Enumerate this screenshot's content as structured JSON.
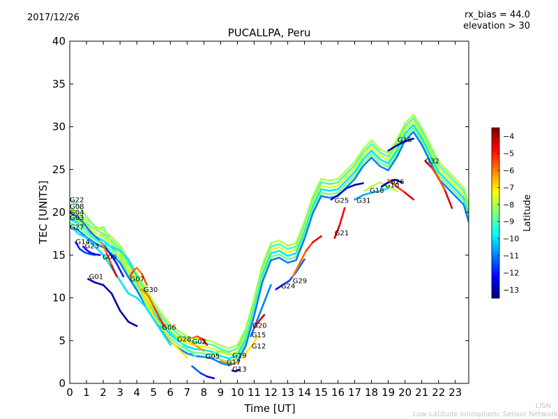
{
  "header": {
    "date": "2017/12/26",
    "info_line1": "rx_bias = 44.0",
    "info_line2": "elevation > 30"
  },
  "footer": {
    "brand": "LISN",
    "network": "Low-Latitude Ionospheric Sensor Network"
  },
  "colors": {
    "jet": [
      "#00007f",
      "#0000ff",
      "#007fff",
      "#00ffff",
      "#7fff7f",
      "#ffff00",
      "#ff7f00",
      "#ff0000",
      "#7f0000"
    ]
  },
  "chart_data": {
    "type": "line",
    "title": "PUCALLPA, Peru",
    "xlabel": "Time [UT]",
    "ylabel": "TEC [UNITS]",
    "xlim": [
      0,
      23.8
    ],
    "ylim": [
      0,
      40
    ],
    "xticks": [
      0,
      1,
      2,
      3,
      4,
      5,
      6,
      7,
      8,
      9,
      10,
      11,
      12,
      13,
      14,
      15,
      16,
      17,
      18,
      19,
      20,
      21,
      22,
      23
    ],
    "yticks": [
      0,
      5,
      10,
      15,
      20,
      25,
      30,
      35,
      40
    ],
    "colorbar": {
      "label": "Latitude",
      "range": [
        -13.5,
        -3.5
      ],
      "ticks": [
        -4,
        -5,
        -6,
        -7,
        -8,
        -9,
        -10,
        -11,
        -12,
        -13
      ]
    },
    "series": [
      {
        "name": "G22",
        "label_at": [
          0.0,
          21.2
        ],
        "x": [
          0,
          0.5,
          1,
          1.5,
          2,
          2.5,
          3,
          3.5,
          4,
          4.5,
          5
        ],
        "y": [
          21.5,
          20.8,
          19.5,
          18.3,
          17.2,
          16.3,
          14.8,
          13.2,
          11.5,
          9.5,
          7.5
        ],
        "lat": [
          -9,
          -9,
          -8.5,
          -8.5,
          -8,
          -8,
          -8,
          -8,
          -8,
          -8,
          -8
        ]
      },
      {
        "name": "G08",
        "label_at": [
          0.0,
          20.4
        ],
        "x": [
          0,
          0.5,
          1,
          1.5,
          2,
          2.5,
          3,
          3.5,
          4,
          4.5,
          5,
          5.5,
          6,
          6.5,
          7
        ],
        "y": [
          20.5,
          20,
          18.5,
          18,
          18.3,
          16.5,
          15.5,
          13.5,
          12.3,
          10,
          8,
          6.5,
          5,
          4,
          3
        ],
        "lat": [
          -8,
          -8,
          -8,
          -8,
          -8.5,
          -8,
          -8,
          -7.5,
          -7,
          -7,
          -7,
          -7,
          -7,
          -7,
          -7
        ]
      },
      {
        "name": "G04",
        "label_at": [
          0.0,
          19.7
        ],
        "x": [
          0,
          0.4,
          0.8,
          1.2,
          1.6,
          2,
          2.4,
          2.8,
          3.2
        ],
        "y": [
          20,
          19.5,
          18.8,
          17.8,
          17,
          16.2,
          15.2,
          14,
          12.5
        ],
        "lat": [
          -11,
          -11,
          -11,
          -11,
          -11.5,
          -11.5,
          -12,
          -12,
          -12
        ]
      },
      {
        "name": "G03",
        "label_at": [
          0.0,
          19.1
        ],
        "x": [
          0,
          0.4,
          0.8,
          1.2,
          1.6,
          2,
          2.5,
          3,
          3.5,
          4
        ],
        "y": [
          19.5,
          19,
          18.3,
          17.5,
          16.8,
          16.3,
          16,
          15.5,
          14.5,
          12.5
        ],
        "lat": [
          -9,
          -9,
          -9,
          -9,
          -9.5,
          -9.5,
          -10,
          -10,
          -10,
          -10
        ]
      },
      {
        "name": "G27",
        "label_at": [
          0.0,
          18.0
        ],
        "x": [
          0,
          0.5,
          1,
          1.5,
          2,
          2.5,
          3,
          3.5,
          4,
          4.5,
          5,
          5.5,
          6
        ],
        "y": [
          18.5,
          17.5,
          17,
          16,
          15,
          13.5,
          12,
          10.5,
          10,
          9,
          7.5,
          6,
          4.5
        ],
        "lat": [
          -10,
          -10,
          -10,
          -10,
          -10,
          -10,
          -10,
          -10,
          -10,
          -10,
          -10,
          -10,
          -10
        ]
      },
      {
        "name": "G14",
        "label_at": [
          0.35,
          16.3
        ],
        "x": [
          0.35,
          0.6,
          0.9,
          1.2,
          1.5
        ],
        "y": [
          16.5,
          15.7,
          15.3,
          15.1,
          15.0
        ],
        "lat": [
          -12,
          -12,
          -11.5,
          -11.5,
          -11
        ]
      },
      {
        "name": "G23",
        "label_at": [
          0.9,
          15.8
        ],
        "x": [
          0.8,
          1.0,
          1.2,
          1.5,
          1.8
        ],
        "y": [
          16.0,
          15.6,
          15.3,
          15.1,
          15.0
        ],
        "lat": [
          -12,
          -12.5,
          -12.5,
          -12.5,
          -12.5
        ]
      },
      {
        "name": "G09",
        "label_at": [
          1.95,
          14.5
        ],
        "x": [
          1.9,
          2.2,
          2.5,
          2.8
        ],
        "y": [
          16.5,
          15.2,
          13.8,
          12.5
        ],
        "lat": [
          -6,
          -6,
          -5,
          -4
        ]
      },
      {
        "name": "G01",
        "label_at": [
          1.15,
          12.2
        ],
        "x": [
          1.1,
          1.5,
          2,
          2.5,
          3,
          3.5,
          4
        ],
        "y": [
          12.2,
          11.8,
          11.5,
          10.5,
          8.5,
          7.2,
          6.7
        ],
        "lat": [
          -13,
          -13,
          -13,
          -13,
          -13,
          -13,
          -13
        ]
      },
      {
        "name": "G07",
        "label_at": [
          3.6,
          11.9
        ],
        "x": [
          3.6,
          3.8,
          4,
          4.3,
          4.6
        ],
        "y": [
          12.5,
          13.2,
          13.5,
          12.8,
          11.5
        ],
        "lat": [
          -5,
          -5.5,
          -6,
          -6,
          -5
        ]
      },
      {
        "name": "G30",
        "label_at": [
          4.4,
          10.7
        ],
        "x": [
          4.3,
          4.7,
          5,
          5.4,
          5.8
        ],
        "y": [
          11.0,
          10.2,
          9.0,
          7.5,
          6.2
        ],
        "lat": [
          -6,
          -6,
          -5.5,
          -5,
          -5
        ]
      },
      {
        "name": "G06",
        "label_at": [
          5.5,
          6.3
        ],
        "x": [
          5.2,
          5.6,
          6,
          6.5,
          7,
          7.5
        ],
        "y": [
          6.8,
          6.5,
          6.0,
          5.0,
          4.0,
          3.2
        ],
        "lat": [
          -10,
          -10,
          -9.5,
          -9,
          -9,
          -9
        ]
      },
      {
        "name": "G28",
        "label_at": [
          6.4,
          4.9
        ],
        "x": [
          6.4,
          6.8,
          7.2,
          7.6,
          8.0
        ],
        "y": [
          5.5,
          5.2,
          4.8,
          4.3,
          3.8
        ],
        "lat": [
          -7,
          -7,
          -7,
          -6.5,
          -6
        ]
      },
      {
        "name": "G02",
        "label_at": [
          7.3,
          4.6
        ],
        "x": [
          7.3,
          7.6,
          7.9,
          8.2
        ],
        "y": [
          5.3,
          5.5,
          5.2,
          4.5
        ],
        "lat": [
          -6,
          -6,
          -5,
          -4
        ]
      },
      {
        "name": "G05",
        "label_at": [
          8.1,
          2.9
        ],
        "x": [
          7.3,
          7.8,
          8.2,
          8.6
        ],
        "y": [
          2.0,
          1.2,
          0.8,
          0.6
        ],
        "lat": [
          -11,
          -11.5,
          -12,
          -13
        ]
      },
      {
        "name": "G19",
        "label_at": [
          9.7,
          3.0
        ],
        "x": [
          8.0,
          8.5,
          9.0,
          9.5,
          10.0
        ],
        "y": [
          3.2,
          3.5,
          3.8,
          3.5,
          3.2
        ],
        "lat": [
          -9,
          -9,
          -8.5,
          -8.5,
          -8
        ]
      },
      {
        "name": "G17",
        "label_at": [
          9.35,
          2.2
        ],
        "x": [
          9.0,
          9.4,
          9.8,
          10.1
        ],
        "y": [
          2.6,
          2.3,
          2.3,
          2.5
        ],
        "lat": [
          -6,
          -6,
          -6,
          -7
        ]
      },
      {
        "name": "G13",
        "label_at": [
          9.7,
          1.4
        ],
        "x": [
          9.7,
          9.9,
          10.1
        ],
        "y": [
          1.5,
          1.4,
          1.6
        ],
        "lat": [
          -13,
          -13,
          -13
        ]
      },
      {
        "name": "G12",
        "label_at": [
          10.85,
          4.1
        ],
        "x": [
          10.3,
          10.6,
          10.9,
          11.2
        ],
        "y": [
          3.0,
          3.8,
          4.5,
          5.5
        ],
        "lat": [
          -7,
          -7,
          -7,
          -7
        ]
      },
      {
        "name": "G15",
        "label_at": [
          10.85,
          5.4
        ],
        "x": [
          10.8,
          11.2,
          11.6,
          12.0
        ],
        "y": [
          5.5,
          7.5,
          9.5,
          11.5
        ],
        "lat": [
          -11,
          -11,
          -11,
          -11
        ]
      },
      {
        "name": "G20",
        "label_at": [
          10.9,
          6.5
        ],
        "x": [
          11.0,
          11.3,
          11.6
        ],
        "y": [
          6.5,
          7.3,
          8.0
        ],
        "lat": [
          -5,
          -4.5,
          -4
        ]
      },
      {
        "name": "G24",
        "label_at": [
          12.6,
          11.1
        ],
        "x": [
          12.3,
          12.7,
          13.1,
          13.5,
          14.0
        ],
        "y": [
          11.0,
          11.5,
          12.0,
          13.0,
          14.5
        ],
        "lat": [
          -12,
          -12,
          -11.5,
          -11.5,
          -11
        ]
      },
      {
        "name": "G29",
        "label_at": [
          13.3,
          11.7
        ],
        "x": [
          13.3,
          13.7,
          14.1,
          14.5,
          15.0
        ],
        "y": [
          12.5,
          14.0,
          15.5,
          16.5,
          17.2
        ],
        "lat": [
          -6,
          -6,
          -5.5,
          -5,
          -4
        ]
      },
      {
        "name": "G21",
        "label_at": [
          15.8,
          17.3
        ],
        "x": [
          15.8,
          16.1,
          16.4
        ],
        "y": [
          17.0,
          18.5,
          20.5
        ],
        "lat": [
          -4,
          -4.5,
          -5
        ]
      },
      {
        "name": "G25",
        "label_at": [
          15.8,
          21.1
        ],
        "x": [
          15.6,
          16.0,
          16.5,
          17.0,
          17.5
        ],
        "y": [
          21.5,
          22.0,
          22.8,
          23.2,
          23.4
        ],
        "lat": [
          -13,
          -12.5,
          -12.5,
          -13,
          -13
        ]
      },
      {
        "name": "G31",
        "label_at": [
          17.1,
          21.1
        ],
        "x": [
          17.0,
          17.5,
          18.0,
          18.5,
          19.0
        ],
        "y": [
          21.5,
          22.0,
          22.3,
          22.5,
          22.8
        ],
        "lat": [
          -11,
          -10.5,
          -10.5,
          -10,
          -10
        ]
      },
      {
        "name": "G18",
        "label_at": [
          17.9,
          22.3
        ],
        "x": [
          17.6,
          18.0,
          18.5,
          19.0,
          19.5
        ],
        "y": [
          22.5,
          23.0,
          23.5,
          23.0,
          22.5
        ],
        "lat": [
          -8,
          -8,
          -8,
          -8,
          -8
        ]
      },
      {
        "name": "G10",
        "label_at": [
          18.8,
          22.9
        ],
        "x": [
          18.6,
          19.0,
          19.4,
          19.8
        ],
        "y": [
          23.0,
          23.5,
          23.8,
          23.5
        ],
        "lat": [
          -13,
          -13,
          -13,
          -13
        ]
      },
      {
        "name": "G26",
        "label_at": [
          19.1,
          23.3
        ],
        "x": [
          19.0,
          19.5,
          20.0,
          20.5
        ],
        "y": [
          23.8,
          23.0,
          22.3,
          21.5
        ],
        "lat": [
          -6,
          -5.5,
          -5,
          -4
        ]
      },
      {
        "name": "G16",
        "label_at": [
          19.55,
          28.2
        ],
        "x": [
          19.0,
          19.5,
          20.0,
          20.5
        ],
        "y": [
          27.2,
          27.8,
          28.3,
          28.6
        ],
        "lat": [
          -13,
          -13,
          -13,
          -12.5
        ]
      },
      {
        "name": "G32",
        "label_at": [
          21.2,
          25.7
        ],
        "x": [
          21.2,
          21.6,
          22.0,
          22.4,
          22.8
        ],
        "y": [
          26.0,
          25.2,
          24.0,
          22.5,
          20.5
        ],
        "lat": [
          -4,
          -5,
          -6,
          -5,
          -4
        ]
      }
    ],
    "envelope": {
      "x": [
        0,
        0.5,
        1,
        1.5,
        2,
        2.5,
        3,
        3.5,
        4,
        4.5,
        5,
        5.5,
        6,
        6.5,
        7,
        7.5,
        8,
        8.5,
        9,
        9.5,
        10,
        10.5,
        11,
        11.5,
        12,
        12.5,
        13,
        13.5,
        14,
        14.5,
        15,
        15.5,
        16,
        16.5,
        17,
        17.5,
        18,
        18.5,
        19,
        19.5,
        20,
        20.5,
        21,
        21.5,
        22,
        22.5,
        23,
        23.5,
        23.8
      ],
      "mid": [
        19.5,
        19,
        18.2,
        17.5,
        17,
        16.2,
        15.2,
        13.5,
        12,
        10.3,
        8.6,
        7.2,
        6,
        5.2,
        4.6,
        4.3,
        4.2,
        4,
        3.5,
        3.2,
        3.6,
        5.5,
        9,
        13,
        15.5,
        15.8,
        15.2,
        15.5,
        18,
        21,
        23,
        22.8,
        23,
        24,
        25,
        26.5,
        27.5,
        26.5,
        26,
        27.5,
        29.5,
        30.5,
        29,
        27,
        25,
        24,
        23,
        22,
        20
      ],
      "curves": [
        {
          "offset": 0.9,
          "lat": -8
        },
        {
          "offset": 0.5,
          "lat": -9
        },
        {
          "offset": 0.1,
          "lat": -7.5
        },
        {
          "offset": -0.3,
          "lat": -10
        },
        {
          "offset": -0.7,
          "lat": -8.5
        },
        {
          "offset": -1.1,
          "lat": -11
        }
      ]
    }
  }
}
